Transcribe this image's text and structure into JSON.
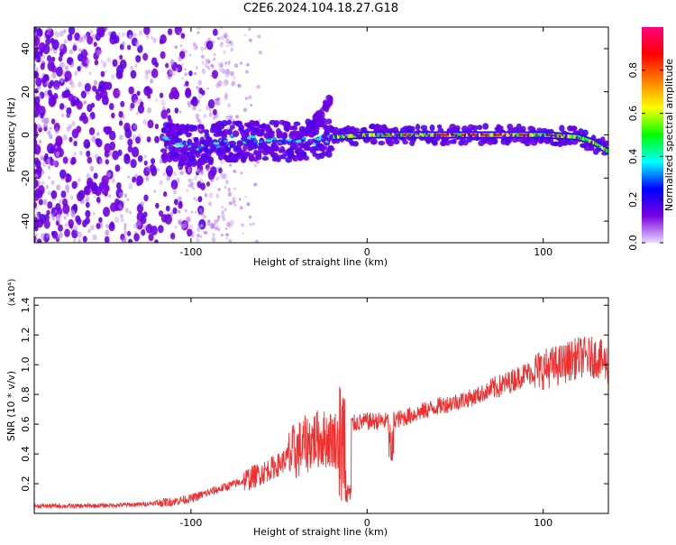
{
  "page": {
    "title": "C2E6.2024.104.18.27.G18"
  },
  "chart_data": [
    {
      "type": "heatmap",
      "title": "C2E6.2024.104.18.27.G18",
      "xlabel": "Height of straight line (km)",
      "ylabel": "Frequency (Hz)",
      "xlim": [
        -189,
        137
      ],
      "ylim": [
        -50,
        50
      ],
      "xticks": [
        -100,
        0,
        100
      ],
      "xtick_labels": [
        "-100",
        "0",
        "100"
      ],
      "yticks": [
        -40,
        -20,
        0,
        20,
        40
      ],
      "ytick_labels": [
        "-40",
        "-20",
        "0",
        "20",
        "40"
      ],
      "colorbar": {
        "label": "Normalized spectral amplitude",
        "range": [
          0,
          1
        ],
        "ticks": [
          0.0,
          0.2,
          0.4,
          0.6,
          0.8
        ],
        "tick_labels": [
          "0.0",
          "0.2",
          "0.4",
          "0.6",
          "0.8"
        ],
        "colormap": [
          "#e8d8ff",
          "#7b00e0",
          "#0000ff",
          "#00ffff",
          "#00ff00",
          "#ffff00",
          "#ff8000",
          "#ff0000",
          "#ff0080"
        ]
      },
      "components": [
        {
          "name": "noise",
          "x_range": [
            -189,
            -100
          ],
          "freq_range": [
            -50,
            50
          ],
          "level": 0.1
        },
        {
          "name": "main_trace",
          "points": [
            [
              -115,
              -3
            ],
            [
              -100,
              -5
            ],
            [
              -80,
              -3
            ],
            [
              -60,
              -3
            ],
            [
              -40,
              -3
            ],
            [
              -20,
              -1
            ],
            [
              0,
              0
            ],
            [
              20,
              0
            ],
            [
              40,
              0
            ],
            [
              60,
              0
            ],
            [
              80,
              0
            ],
            [
              100,
              0
            ],
            [
              120,
              -1
            ],
            [
              130,
              -4
            ],
            [
              137,
              -8
            ]
          ],
          "level": 0.85
        },
        {
          "name": "secondary_trace",
          "points": [
            [
              -40,
              -3
            ],
            [
              -30,
              5
            ],
            [
              -20,
              18
            ]
          ],
          "level": 0.3
        }
      ],
      "grid": false,
      "legend": "none"
    },
    {
      "type": "line",
      "xlabel": "Height of straight line (km)",
      "ylabel": "SNR (10 * v/v)",
      "y_multiplier_label": "(x10⁴)",
      "xlim": [
        -189,
        137
      ],
      "ylim": [
        0,
        1.45
      ],
      "xticks": [
        -100,
        0,
        100
      ],
      "xtick_labels": [
        "-100",
        "0",
        "100"
      ],
      "yticks": [
        0.2,
        0.4,
        0.6,
        0.8,
        1.0,
        1.2,
        1.4
      ],
      "ytick_labels": [
        "0.2",
        "0.4",
        "0.6",
        "0.8",
        "1.0",
        "1.2",
        "1.4"
      ],
      "series": [
        {
          "color": "#f03030",
          "x": [
            -189,
            -160,
            -130,
            -110,
            -100,
            -90,
            -80,
            -70,
            -60,
            -50,
            -40,
            -30,
            -22,
            -18,
            -15,
            -10,
            0,
            10,
            20,
            30,
            40,
            50,
            60,
            70,
            80,
            90,
            100,
            110,
            120,
            130,
            137
          ],
          "y": [
            0.05,
            0.05,
            0.06,
            0.08,
            0.1,
            0.14,
            0.18,
            0.22,
            0.27,
            0.33,
            0.42,
            0.5,
            0.5,
            0.5,
            0.45,
            0.6,
            0.62,
            0.62,
            0.64,
            0.68,
            0.72,
            0.75,
            0.78,
            0.83,
            0.88,
            0.94,
            0.97,
            1.0,
            1.05,
            1.05,
            1.0
          ]
        }
      ],
      "grid": false,
      "legend": "none"
    }
  ]
}
